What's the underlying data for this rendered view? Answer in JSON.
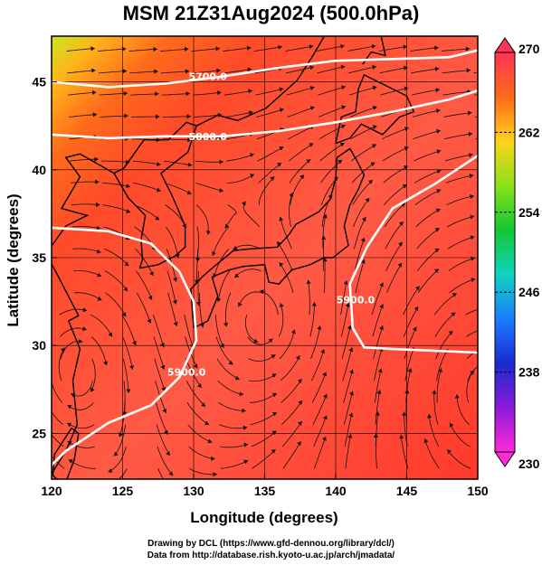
{
  "title": "MSM 21Z31Aug2024 (500.0hPa)",
  "footer_line1": "Drawing by DCL (https://www.gfd-dennou.org/library/dcl/)",
  "footer_line2": "Data from http://database.rish.kyoto-u.ac.jp/arch/jmadata/",
  "map": {
    "x_label": "Longitude (degrees)",
    "y_label": "Latitude  (degrees)",
    "x_range": [
      120,
      150
    ],
    "y_range": [
      22.4,
      47.6
    ],
    "x_ticks": [
      120,
      125,
      130,
      135,
      140,
      145,
      150
    ],
    "y_ticks": [
      25,
      30,
      35,
      40,
      45
    ],
    "grid_lon": [
      120,
      125,
      130,
      135,
      140,
      145,
      150
    ],
    "grid_lat": [
      25,
      30,
      35,
      40,
      45
    ]
  },
  "colorbar": {
    "min": 230,
    "max": 270,
    "tick_labels": [
      "270",
      "262",
      "254",
      "246",
      "238",
      "230"
    ],
    "tick_values": [
      270,
      262,
      254,
      246,
      238,
      230
    ],
    "colors": [
      "#ff3355",
      "#ff6a1a",
      "#ffd21a",
      "#88e21a",
      "#12c832",
      "#10d2c0",
      "#1a7dff",
      "#1a2ad2",
      "#8a1ad8",
      "#ff2ad8"
    ]
  },
  "contours": [
    {
      "label": "5700.0",
      "points": [
        [
          120,
          45.0
        ],
        [
          124,
          44.7
        ],
        [
          128,
          44.9
        ],
        [
          132,
          45.3
        ],
        [
          136,
          45.8
        ],
        [
          140,
          46.2
        ],
        [
          144,
          46.3
        ],
        [
          148,
          46.4
        ],
        [
          150,
          46.8
        ]
      ],
      "label_at": [
        131.0,
        45.3
      ]
    },
    {
      "label": "5800.0",
      "points": [
        [
          120,
          42.0
        ],
        [
          124,
          41.8
        ],
        [
          128,
          41.9
        ],
        [
          132,
          41.9
        ],
        [
          136,
          42.2
        ],
        [
          140,
          42.7
        ],
        [
          144,
          43.3
        ],
        [
          148,
          44.0
        ],
        [
          150,
          44.5
        ]
      ],
      "label_at": [
        131.0,
        41.9
      ]
    },
    {
      "label": "5900.0",
      "points": [
        [
          120,
          36.7
        ],
        [
          124,
          36.5
        ],
        [
          127,
          35.8
        ],
        [
          129,
          34.2
        ],
        [
          130,
          32.5
        ],
        [
          130.2,
          30.3
        ],
        [
          129,
          28.2
        ],
        [
          127,
          26.6
        ],
        [
          124,
          25.6
        ],
        [
          121,
          24.0
        ],
        [
          120,
          23.2
        ]
      ],
      "label_at": [
        129.5,
        28.5
      ]
    },
    {
      "label": "5900.0",
      "points": [
        [
          150,
          40.8
        ],
        [
          147,
          39.2
        ],
        [
          144,
          37.8
        ],
        [
          142.2,
          35.6
        ],
        [
          141,
          33.5
        ],
        [
          141.2,
          31.0
        ],
        [
          142,
          29.9
        ],
        [
          144,
          29.8
        ],
        [
          147,
          29.7
        ],
        [
          150,
          29.6
        ]
      ],
      "label_at": [
        141.4,
        32.6
      ]
    }
  ]
}
